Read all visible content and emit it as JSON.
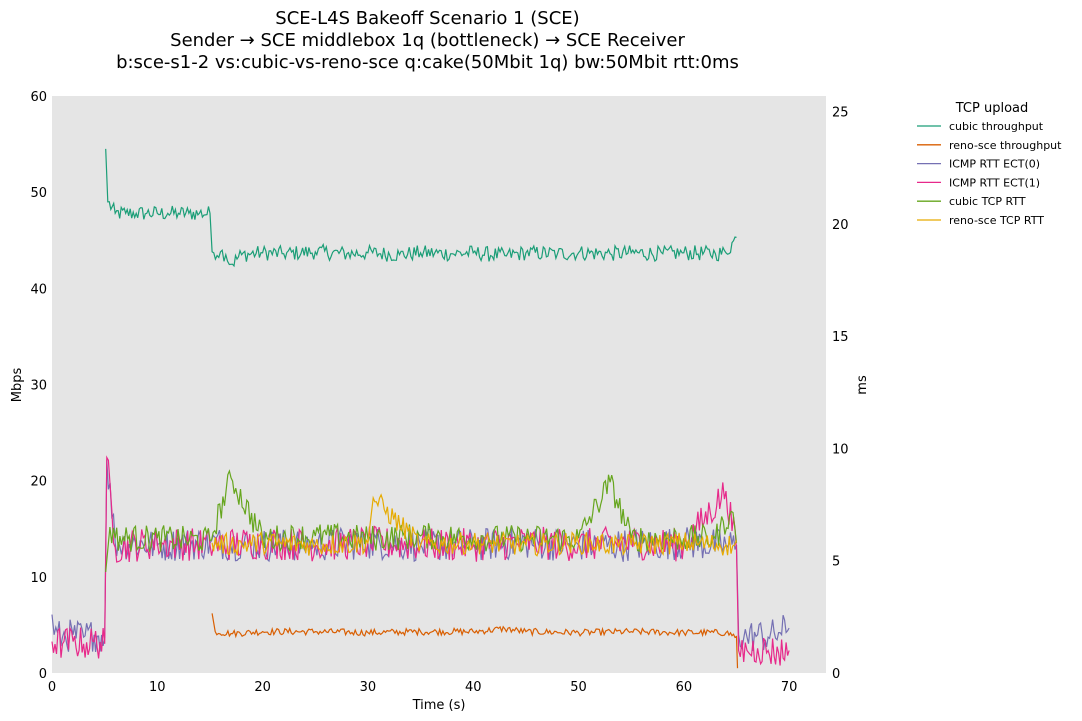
{
  "chart_data": {
    "type": "line",
    "title": [
      "SCE-L4S Bakeoff Scenario 1 (SCE)",
      "Sender → SCE middlebox 1q (bottleneck) → SCE Receiver",
      "b:sce-s1-2 vs:cubic-vs-reno-sce q:cake(50Mbit 1q) bw:50Mbit rtt:0ms"
    ],
    "xlabel": "Time (s)",
    "ylabel_left": "Mbps",
    "ylabel_right": "ms",
    "xlim": [
      0,
      73.5
    ],
    "ylim_left": [
      0,
      60
    ],
    "ylim_right": [
      0,
      25.7
    ],
    "xticks": [
      0,
      10,
      20,
      30,
      40,
      50,
      60,
      70
    ],
    "yticks_left": [
      0,
      10,
      20,
      30,
      40,
      50,
      60
    ],
    "yticks_right": [
      0,
      5,
      10,
      15,
      20,
      25
    ],
    "grid": false,
    "background": "#e5e5e5",
    "legend_title": "TCP upload",
    "legend_position": "outside-top-right",
    "series": [
      {
        "name": "cubic throughput",
        "axis": "left",
        "color": "#1b9e77",
        "segments": [
          {
            "x": [
              5.1,
              5.3,
              6,
              7,
              8,
              9,
              10,
              11,
              12,
              13,
              14,
              15,
              15.2,
              16,
              16.5,
              17,
              18,
              20,
              22,
              25,
              28,
              30,
              33,
              35,
              38,
              40,
              43,
              45,
              48,
              50,
              53,
              55,
              58,
              60,
              63,
              64,
              65
            ],
            "y": [
              54.5,
              49,
              47.8,
              47.8,
              47.8,
              47.8,
              47.8,
              47.8,
              47.8,
              47.8,
              47.8,
              47.8,
              43.8,
              43.8,
              43.5,
              42.5,
              43.5,
              43.7,
              43.6,
              43.8,
              43.6,
              43.7,
              43.5,
              43.7,
              43.6,
              43.7,
              43.4,
              43.7,
              43.6,
              43.7,
              43.6,
              43.7,
              43.6,
              43.7,
              43.6,
              43.7,
              45.3
            ]
          }
        ]
      },
      {
        "name": "reno-sce throughput",
        "axis": "left",
        "color": "#d95f02",
        "segments": [
          {
            "x": [
              15.2,
              15.5,
              17,
              20,
              25,
              30,
              35,
              40,
              43,
              45,
              50,
              55,
              60,
              64,
              65,
              65.1
            ],
            "y": [
              6.2,
              4.3,
              4.1,
              4.3,
              4.3,
              4.2,
              4.3,
              4.3,
              4.6,
              4.3,
              4.2,
              4.3,
              4.2,
              4.2,
              3.8,
              0.5
            ]
          }
        ]
      },
      {
        "name": "ICMP RTT ECT(0)",
        "axis": "right",
        "color": "#7570b3",
        "segments": [
          {
            "x": [
              0,
              0.2,
              1,
              2,
              3,
              4,
              5,
              5.2,
              6,
              10,
              15,
              20,
              25,
              30,
              35,
              40,
              45,
              50,
              55,
              60,
              64,
              65,
              65.2,
              66,
              67,
              68,
              69,
              70
            ],
            "y": [
              2.6,
              1.7,
              1.6,
              1.7,
              1.6,
              1.7,
              1.6,
              9.5,
              5.8,
              5.7,
              5.8,
              5.7,
              5.7,
              5.8,
              5.7,
              5.7,
              5.8,
              5.7,
              5.7,
              5.8,
              5.7,
              5.7,
              1.7,
              1.6,
              1.7,
              1.6,
              1.8,
              2.0
            ]
          }
        ]
      },
      {
        "name": "ICMP RTT ECT(1)",
        "axis": "right",
        "color": "#e7298a",
        "segments": [
          {
            "x": [
              0,
              1,
              2,
              3,
              4,
              5,
              5.2,
              6,
              10,
              15,
              20,
              25,
              30,
              35,
              40,
              45,
              50,
              55,
              60,
              64,
              65,
              65.2,
              66,
              67,
              68,
              69,
              70
            ],
            "y": [
              1.4,
              1.3,
              1.4,
              1.3,
              1.4,
              1.3,
              9.6,
              5.6,
              5.8,
              5.7,
              5.8,
              5.7,
              5.8,
              5.7,
              5.7,
              5.8,
              5.7,
              5.8,
              5.7,
              8.1,
              5.5,
              1.0,
              1.0,
              1.1,
              1.0,
              0.9,
              1.0
            ]
          }
        ]
      },
      {
        "name": "cubic TCP RTT",
        "axis": "right",
        "color": "#66a61e",
        "segments": [
          {
            "x": [
              5.1,
              5.5,
              6,
              10,
              15,
              17,
              20,
              25,
              30,
              35,
              40,
              45,
              50,
              53,
              55,
              60,
              63,
              64.5,
              65
            ],
            "y": [
              4.5,
              6.5,
              6.0,
              6.0,
              5.9,
              8.7,
              6.0,
              6.1,
              6.0,
              6.1,
              6.0,
              6.0,
              6.0,
              8.5,
              6.0,
              6.0,
              6.0,
              7.2,
              5.8
            ]
          }
        ]
      },
      {
        "name": "reno-sce TCP RTT",
        "axis": "right",
        "color": "#e6ab02",
        "segments": [
          {
            "x": [
              15.2,
              17,
              20,
              25,
              30,
              30.5,
              35,
              40,
              45,
              50,
              55,
              60,
              64,
              64.8,
              65
            ],
            "y": [
              5.8,
              5.7,
              5.8,
              5.7,
              5.8,
              7.8,
              5.7,
              5.8,
              5.7,
              5.8,
              5.7,
              5.8,
              5.7,
              5.7,
              5.9
            ]
          }
        ]
      }
    ]
  }
}
